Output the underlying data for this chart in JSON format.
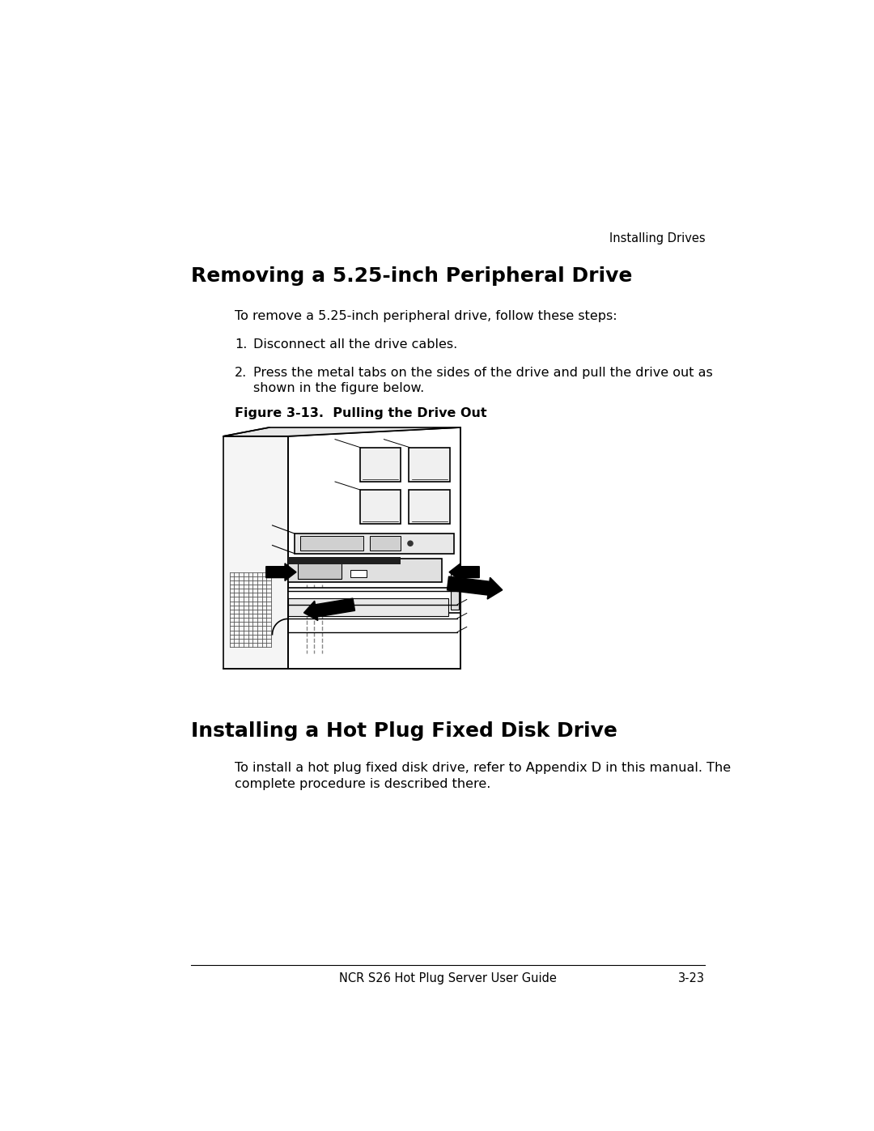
{
  "bg_color": "#ffffff",
  "header_right": "Installing Drives",
  "section1_title": "Removing a 5.25-inch Peripheral Drive",
  "section1_intro": "To remove a 5.25-inch peripheral drive, follow these steps:",
  "step1": "Disconnect all the drive cables.",
  "step2_line1": "Press the metal tabs on the sides of the drive and pull the drive out as",
  "step2_line2": "shown in the figure below.",
  "figure_caption": "Figure 3-13.  Pulling the Drive Out",
  "section2_title": "Installing a Hot Plug Fixed Disk Drive",
  "section2_line1": "To install a hot plug fixed disk drive, refer to Appendix D in this manual. The",
  "section2_line2": "complete procedure is described there.",
  "footer_center": "NCR S26 Hot Plug Server User Guide",
  "footer_right": "3-23",
  "text_color": "#000000",
  "title_fontsize": 18,
  "body_fontsize": 11.5,
  "header_fontsize": 10.5,
  "caption_fontsize": 11.5
}
